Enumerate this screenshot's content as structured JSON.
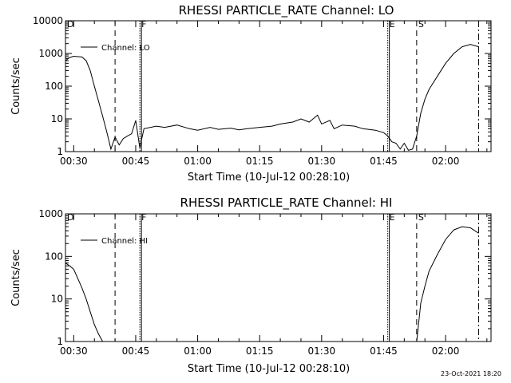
{
  "footer": {
    "date_stamp": "23-Oct-2021 18:20"
  },
  "chart_data": [
    {
      "type": "line",
      "title": "RHESSI PARTICLE_RATE Channel: LO",
      "xlabel": "Start Time (10-Jul-12 00:28:10)",
      "ylabel": "Counts/sec",
      "yscale": "log",
      "ylim": [
        1,
        10000
      ],
      "yticks": [
        "1",
        "10",
        "100",
        "1000",
        "10000"
      ],
      "xlim": [
        "00:28",
        "02:11"
      ],
      "xticks": [
        "00:30",
        "00:45",
        "01:00",
        "01:15",
        "01:30",
        "01:45",
        "02:00"
      ],
      "legend": {
        "position": "top-left",
        "entries": [
          "Channel: LO"
        ]
      },
      "event_markers": [
        {
          "label": "D",
          "time": "00:28",
          "style": "none"
        },
        {
          "label": "",
          "time": "00:40",
          "style": "dashed"
        },
        {
          "label": "F",
          "time": "00:46",
          "style": "dotted"
        },
        {
          "label": "E",
          "time": "01:46",
          "style": "dotted"
        },
        {
          "label": "S",
          "time": "01:53",
          "style": "dashed"
        },
        {
          "label": "",
          "time": "02:08",
          "style": "dashdot"
        }
      ],
      "series": [
        {
          "name": "Channel: LO",
          "points": [
            [
              "00:28",
              600
            ],
            [
              "00:29",
              750
            ],
            [
              "00:30",
              820
            ],
            [
              "00:31",
              800
            ],
            [
              "00:32",
              780
            ],
            [
              "00:33",
              600
            ],
            [
              "00:34",
              300
            ],
            [
              "00:35",
              100
            ],
            [
              "00:36",
              35
            ],
            [
              "00:37",
              12
            ],
            [
              "00:38",
              4
            ],
            [
              "00:39",
              1.2
            ],
            [
              "00:40",
              2.8
            ],
            [
              "00:41",
              1.6
            ],
            [
              "00:42",
              2.5
            ],
            [
              "00:43",
              3.0
            ],
            [
              "00:44",
              3.5
            ],
            [
              "00:45",
              9.0
            ],
            [
              "00:46",
              1.3
            ],
            [
              "00:47",
              5.0
            ],
            [
              "00:50",
              6.0
            ],
            [
              "00:52",
              5.5
            ],
            [
              "00:55",
              6.5
            ],
            [
              "00:58",
              5.0
            ],
            [
              "01:00",
              4.5
            ],
            [
              "01:03",
              5.5
            ],
            [
              "01:05",
              4.8
            ],
            [
              "01:08",
              5.2
            ],
            [
              "01:10",
              4.6
            ],
            [
              "01:12",
              5.0
            ],
            [
              "01:15",
              5.5
            ],
            [
              "01:18",
              6.0
            ],
            [
              "01:20",
              7.0
            ],
            [
              "01:23",
              8.0
            ],
            [
              "01:25",
              10.0
            ],
            [
              "01:27",
              8.0
            ],
            [
              "01:29",
              13.0
            ],
            [
              "01:30",
              7.0
            ],
            [
              "01:32",
              9.0
            ],
            [
              "01:33",
              5.0
            ],
            [
              "01:35",
              6.5
            ],
            [
              "01:38",
              6.0
            ],
            [
              "01:40",
              5.0
            ],
            [
              "01:43",
              4.5
            ],
            [
              "01:45",
              3.8
            ],
            [
              "01:46",
              3.0
            ],
            [
              "01:47",
              2.0
            ],
            [
              "01:48",
              1.8
            ],
            [
              "01:49",
              1.2
            ],
            [
              "01:50",
              1.8
            ],
            [
              "01:51",
              1.1
            ],
            [
              "01:52",
              1.2
            ],
            [
              "01:53",
              3.0
            ],
            [
              "01:54",
              15.0
            ],
            [
              "01:55",
              40.0
            ],
            [
              "01:56",
              80.0
            ],
            [
              "01:58",
              200.0
            ],
            [
              "02:00",
              500.0
            ],
            [
              "02:02",
              1000.0
            ],
            [
              "02:04",
              1600.0
            ],
            [
              "02:06",
              1900.0
            ],
            [
              "02:08",
              1600.0
            ]
          ]
        }
      ]
    },
    {
      "type": "line",
      "title": "RHESSI PARTICLE_RATE Channel: HI",
      "xlabel": "Start Time (10-Jul-12 00:28:10)",
      "ylabel": "Counts/sec",
      "yscale": "log",
      "ylim": [
        1,
        1000
      ],
      "yticks": [
        "1",
        "10",
        "100",
        "1000"
      ],
      "xlim": [
        "00:28",
        "02:11"
      ],
      "xticks": [
        "00:30",
        "00:45",
        "01:00",
        "01:15",
        "01:30",
        "01:45",
        "02:00"
      ],
      "legend": {
        "position": "top-left",
        "entries": [
          "Channel: HI"
        ]
      },
      "event_markers": [
        {
          "label": "D",
          "time": "00:28",
          "style": "none"
        },
        {
          "label": "",
          "time": "00:40",
          "style": "dashed"
        },
        {
          "label": "F",
          "time": "00:46",
          "style": "dotted"
        },
        {
          "label": "E",
          "time": "01:46",
          "style": "dotted"
        },
        {
          "label": "S",
          "time": "01:53",
          "style": "dashed"
        },
        {
          "label": "",
          "time": "02:08",
          "style": "dashdot"
        }
      ],
      "series": [
        {
          "name": "Channel: HI",
          "points": [
            [
              "00:28",
              70
            ],
            [
              "00:29",
              60
            ],
            [
              "00:30",
              50
            ],
            [
              "00:31",
              30
            ],
            [
              "00:32",
              18
            ],
            [
              "00:33",
              10
            ],
            [
              "00:34",
              5
            ],
            [
              "00:35",
              2.5
            ],
            [
              "00:36",
              1.5
            ],
            [
              "00:37",
              1.0
            ]
          ]
        },
        {
          "name": "",
          "points": [
            [
              "01:53",
              1.0
            ],
            [
              "01:54",
              8.0
            ],
            [
              "01:55",
              20.0
            ],
            [
              "01:56",
              45.0
            ],
            [
              "01:58",
              110.0
            ],
            [
              "02:00",
              250.0
            ],
            [
              "02:02",
              420.0
            ],
            [
              "02:04",
              500.0
            ],
            [
              "02:06",
              470.0
            ],
            [
              "02:08",
              350.0
            ]
          ]
        }
      ]
    }
  ]
}
